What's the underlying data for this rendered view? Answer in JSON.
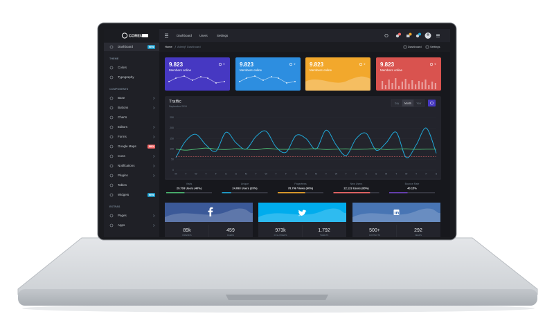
{
  "header": {
    "logo": "COREUI",
    "nav": [
      "Dashboard",
      "Users",
      "Settings"
    ]
  },
  "breadcrumb": {
    "items": [
      "Home",
      "Admin",
      "Dashboard"
    ],
    "actions": [
      "Dashboard",
      "Settings"
    ]
  },
  "sidebar": [
    {
      "label": "Dashboard",
      "kind": "item",
      "badge": "NEW",
      "badge_color": "#20a8d8",
      "active": true
    },
    {
      "label": "THEME",
      "kind": "section"
    },
    {
      "label": "Colors",
      "kind": "item"
    },
    {
      "label": "Typography",
      "kind": "item"
    },
    {
      "label": "COMPONENTS",
      "kind": "section"
    },
    {
      "label": "Base",
      "kind": "item",
      "submenu": true
    },
    {
      "label": "Buttons",
      "kind": "item",
      "submenu": true
    },
    {
      "label": "Charts",
      "kind": "item"
    },
    {
      "label": "Editors",
      "kind": "item",
      "submenu": true
    },
    {
      "label": "Forms",
      "kind": "item",
      "submenu": true
    },
    {
      "label": "Google Maps",
      "kind": "item",
      "badge": "PRO",
      "badge_color": "#f86c6b"
    },
    {
      "label": "Icons",
      "kind": "item",
      "submenu": true
    },
    {
      "label": "Notifications",
      "kind": "item",
      "submenu": true
    },
    {
      "label": "Plugins",
      "kind": "item",
      "submenu": true
    },
    {
      "label": "Tables",
      "kind": "item"
    },
    {
      "label": "Widgets",
      "kind": "item",
      "badge": "NEW",
      "badge_color": "#20a8d8"
    },
    {
      "label": "EXTRAS",
      "kind": "section"
    },
    {
      "label": "Pages",
      "kind": "item",
      "submenu": true
    },
    {
      "label": "Apps",
      "kind": "item",
      "submenu": true
    }
  ],
  "cards": [
    {
      "value": "9.823",
      "label": "Members online",
      "color": "#4638c2",
      "style": "line"
    },
    {
      "value": "9.823",
      "label": "Members online",
      "color": "#2d8ee0",
      "style": "line"
    },
    {
      "value": "9.823",
      "label": "Members online",
      "color": "#f2a82c",
      "style": "area"
    },
    {
      "value": "9.823",
      "label": "Members online",
      "color": "#d9534f",
      "style": "bars"
    }
  ],
  "traffic": {
    "title": "Traffic",
    "subtitle": "September 2019",
    "periods": [
      "Day",
      "Month",
      "Year"
    ],
    "active_period": 1,
    "chart": {
      "type": "line",
      "categories": [
        "M",
        "T",
        "W",
        "T",
        "F",
        "S",
        "S",
        "M",
        "T",
        "W",
        "T",
        "F",
        "S",
        "S",
        "M",
        "T",
        "W",
        "T",
        "F",
        "S",
        "S",
        "M",
        "T",
        "W",
        "T",
        "F",
        "S"
      ],
      "ylim": [
        0,
        250
      ],
      "yticks": [
        0,
        50,
        100,
        150,
        200,
        250
      ],
      "series": [
        {
          "color": "#20a8d8",
          "dashed": false,
          "values": [
            60,
            140,
            170,
            120,
            90,
            180,
            130,
            100,
            160,
            185,
            110,
            85,
            165,
            150,
            100,
            190,
            120,
            70,
            150,
            175,
            95,
            130,
            180,
            60,
            120,
            200,
            80
          ]
        },
        {
          "color": "#4dbd74",
          "dashed": false,
          "values": [
            100,
            95,
            100,
            105,
            100,
            98,
            102,
            100,
            97,
            103,
            100,
            99,
            101,
            100,
            102,
            98,
            100,
            101,
            99,
            100,
            102,
            98,
            100,
            101,
            99,
            100,
            100
          ]
        },
        {
          "color": "#f86c6b",
          "dashed": true,
          "values": [
            65,
            65,
            65,
            65,
            65,
            65,
            65,
            65,
            65,
            65,
            65,
            65,
            65,
            65,
            65,
            65,
            65,
            65,
            65,
            65,
            65,
            65,
            65,
            65,
            65,
            65,
            65
          ]
        }
      ]
    },
    "stats": [
      {
        "label": "Visits",
        "value": "29.703 Users (40%)",
        "percent": 40,
        "color": "#4dbd74"
      },
      {
        "label": "Unique",
        "value": "24.093 Users (20%)",
        "percent": 20,
        "color": "#20a8d8"
      },
      {
        "label": "Pageviews",
        "value": "78.706 Views (60%)",
        "percent": 60,
        "color": "#f2a82c"
      },
      {
        "label": "New Users",
        "value": "22.123 Users (80%)",
        "percent": 80,
        "color": "#f86c6b"
      },
      {
        "label": "Bounce Rate",
        "value": "40.15%",
        "percent": 40.15,
        "color": "#6f42c1"
      }
    ]
  },
  "social": [
    {
      "network": "facebook",
      "color": "#3b5998",
      "stats": [
        {
          "value": "89k",
          "label": "FRIENDS"
        },
        {
          "value": "459",
          "label": "FEEDS"
        }
      ]
    },
    {
      "network": "twitter",
      "color": "#00aced",
      "stats": [
        {
          "value": "973k",
          "label": "FOLLOWERS"
        },
        {
          "value": "1.792",
          "label": "TWEETS"
        }
      ]
    },
    {
      "network": "linkedin",
      "color": "#4875b4",
      "stats": [
        {
          "value": "500+",
          "label": "CONTACTS"
        },
        {
          "value": "292",
          "label": "FEEDS"
        }
      ]
    }
  ]
}
